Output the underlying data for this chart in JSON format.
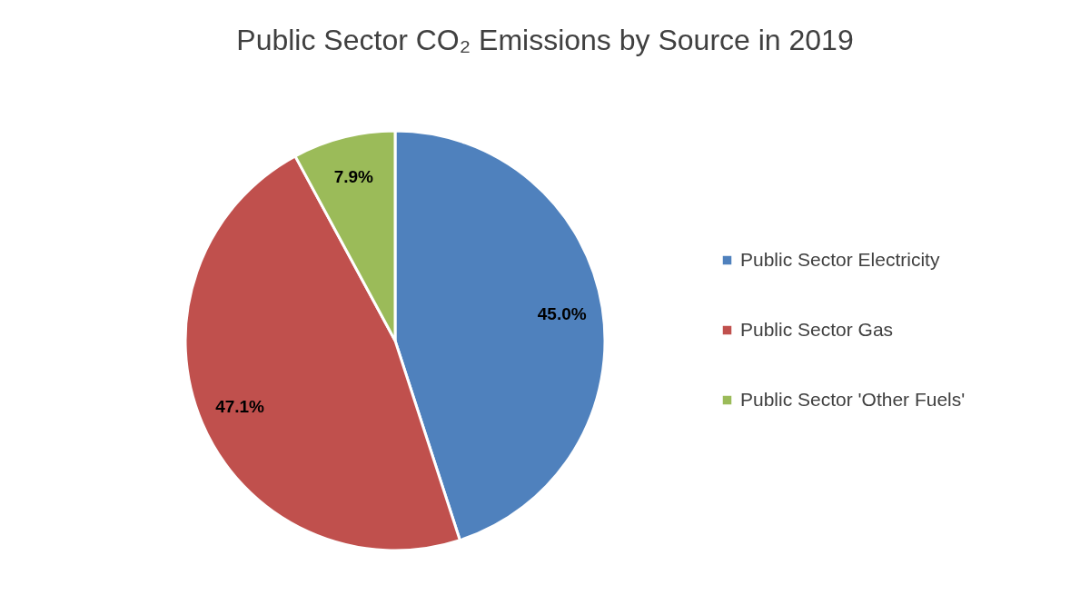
{
  "chart_data": {
    "type": "pie",
    "title": "Public Sector CO₂ Emissions by Source in 2019",
    "categories": [
      "Public Sector Electricity",
      "Public Sector Gas",
      "Public Sector 'Other Fuels'"
    ],
    "values": [
      45.0,
      47.1,
      7.9
    ],
    "colors": [
      "#4f81bd",
      "#c0504d",
      "#9bbb59"
    ],
    "value_labels": [
      "45.0%",
      "47.1%",
      "7.9%"
    ],
    "legend": "right"
  }
}
